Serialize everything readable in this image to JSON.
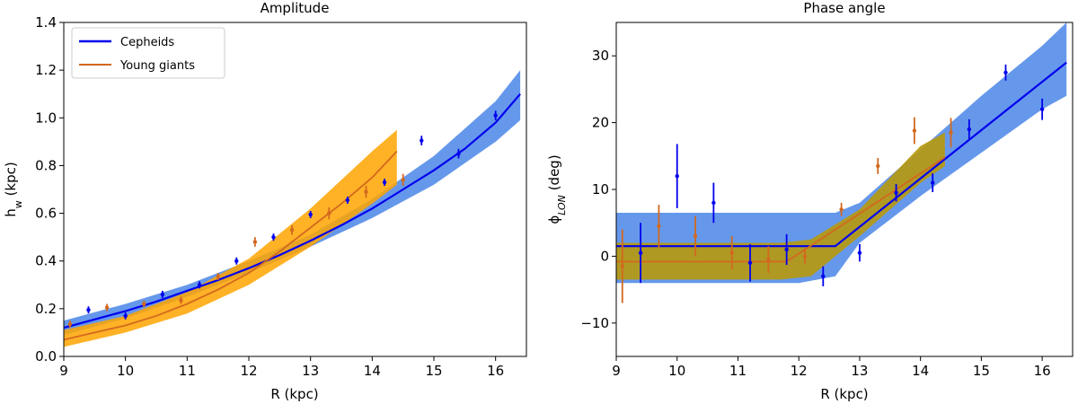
{
  "chart_data": [
    {
      "type": "line",
      "title": "Amplitude",
      "xlabel": "R (kpc)",
      "ylabel": "h_w (kpc)",
      "xlim": [
        9,
        16.5
      ],
      "ylim": [
        0,
        1.4
      ],
      "xticks": [
        "9",
        "10",
        "11",
        "12",
        "13",
        "14",
        "15",
        "16"
      ],
      "yticks": [
        "0.0",
        "0.2",
        "0.4",
        "0.6",
        "0.8",
        "1.0",
        "1.2",
        "1.4"
      ],
      "legend": {
        "placement": "top-left",
        "entries": [
          "Cepheids",
          "Young giants"
        ]
      },
      "series": [
        {
          "name": "Cepheids",
          "color": "#0000ee",
          "band_color": "#4a86e8",
          "line": {
            "x": [
              9.0,
              9.5,
              10.0,
              10.5,
              11.0,
              11.5,
              12.0,
              12.5,
              13.0,
              13.5,
              14.0,
              14.5,
              15.0,
              15.5,
              16.0,
              16.4
            ],
            "y": [
              0.12,
              0.155,
              0.19,
              0.23,
              0.275,
              0.32,
              0.37,
              0.425,
              0.485,
              0.55,
              0.62,
              0.7,
              0.78,
              0.87,
              0.98,
              1.1
            ]
          },
          "band": {
            "x": [
              9.0,
              10.0,
              11.0,
              12.0,
              13.0,
              14.0,
              15.0,
              16.0,
              16.4
            ],
            "lower": [
              0.09,
              0.16,
              0.25,
              0.35,
              0.46,
              0.58,
              0.72,
              0.9,
              0.99
            ],
            "upper": [
              0.15,
              0.22,
              0.3,
              0.4,
              0.51,
              0.66,
              0.84,
              1.07,
              1.2
            ]
          },
          "points": {
            "x": [
              9.4,
              10.0,
              10.6,
              11.2,
              11.8,
              12.4,
              13.0,
              13.6,
              14.2,
              14.8,
              15.4,
              16.0
            ],
            "y": [
              0.195,
              0.17,
              0.26,
              0.3,
              0.4,
              0.5,
              0.595,
              0.655,
              0.73,
              0.905,
              0.85,
              1.01
            ],
            "err": [
              0.015,
              0.015,
              0.015,
              0.015,
              0.015,
              0.015,
              0.015,
              0.015,
              0.015,
              0.02,
              0.02,
              0.02
            ]
          }
        },
        {
          "name": "Young giants",
          "color": "#d2691e",
          "band_color": "#ffa500",
          "line": {
            "x": [
              9.0,
              9.5,
              10.0,
              10.5,
              11.0,
              11.5,
              12.0,
              12.5,
              13.0,
              13.5,
              14.0,
              14.4
            ],
            "y": [
              0.07,
              0.1,
              0.13,
              0.17,
              0.22,
              0.28,
              0.35,
              0.44,
              0.54,
              0.64,
              0.75,
              0.86
            ]
          },
          "band": {
            "x": [
              9.0,
              10.0,
              11.0,
              12.0,
              13.0,
              14.0,
              14.4
            ],
            "lower": [
              0.04,
              0.1,
              0.18,
              0.3,
              0.46,
              0.64,
              0.72
            ],
            "upper": [
              0.11,
              0.17,
              0.27,
              0.41,
              0.62,
              0.86,
              0.95
            ]
          },
          "points": {
            "x": [
              9.1,
              9.7,
              10.3,
              10.9,
              11.5,
              12.1,
              12.7,
              13.3,
              13.9,
              14.5
            ],
            "y": [
              0.135,
              0.205,
              0.22,
              0.235,
              0.335,
              0.48,
              0.53,
              0.6,
              0.69,
              0.74
            ],
            "err": [
              0.015,
              0.015,
              0.015,
              0.015,
              0.015,
              0.02,
              0.02,
              0.025,
              0.025,
              0.025
            ]
          }
        }
      ]
    },
    {
      "type": "line",
      "title": "Phase angle",
      "xlabel": "R (kpc)",
      "ylabel": "φ_LON (deg)",
      "xlim": [
        9,
        16.5
      ],
      "ylim": [
        -15,
        35
      ],
      "xticks": [
        "9",
        "10",
        "11",
        "12",
        "13",
        "14",
        "15",
        "16"
      ],
      "yticks": [
        "−10",
        "0",
        "10",
        "20",
        "30"
      ],
      "series": [
        {
          "name": "Cepheids",
          "color": "#0000ee",
          "band_color": "#4a86e8",
          "line": {
            "x": [
              9.0,
              12.6,
              16.4
            ],
            "y": [
              1.5,
              1.5,
              29.0
            ]
          },
          "band": {
            "x": [
              9.0,
              12.0,
              12.6,
              13.0,
              14.0,
              15.0,
              16.0,
              16.4
            ],
            "lower": [
              -4.0,
              -4.0,
              -3.0,
              2.0,
              9.0,
              15.5,
              22.0,
              24.0
            ],
            "upper": [
              6.5,
              6.5,
              6.5,
              8.0,
              16.0,
              24.0,
              31.5,
              35.0
            ]
          },
          "points": {
            "x": [
              9.4,
              10.0,
              10.6,
              11.2,
              11.8,
              12.4,
              13.0,
              13.6,
              14.2,
              14.8,
              15.4,
              16.0
            ],
            "y": [
              0.5,
              12.0,
              8.0,
              -1.0,
              1.0,
              -3.0,
              0.5,
              9.5,
              11.0,
              19.0,
              27.5,
              22.0
            ],
            "err": [
              4.5,
              4.8,
              3.0,
              2.8,
              2.3,
              1.5,
              1.3,
              1.3,
              1.4,
              1.5,
              1.2,
              1.6
            ]
          }
        },
        {
          "name": "Young giants",
          "color": "#d2691e",
          "band_color": "#ffa500",
          "line": {
            "x": [
              9.0,
              11.8,
              14.4
            ],
            "y": [
              -0.8,
              -0.8,
              14.8
            ]
          },
          "band": {
            "x": [
              9.0,
              11.7,
              12.2,
              13.0,
              14.0,
              14.4
            ],
            "lower": [
              -3.5,
              -3.5,
              -3.0,
              3.0,
              11.0,
              13.5
            ],
            "upper": [
              2.0,
              2.0,
              2.5,
              7.0,
              16.5,
              18.5
            ]
          },
          "points": {
            "x": [
              9.1,
              9.7,
              10.3,
              10.9,
              11.5,
              12.1,
              12.7,
              13.3,
              13.9,
              14.5
            ],
            "y": [
              -1.5,
              4.5,
              3.0,
              0.5,
              -0.5,
              0.0,
              7.0,
              13.5,
              18.8,
              18.5
            ],
            "err": [
              5.5,
              3.2,
              3.0,
              2.5,
              2.0,
              1.2,
              1.0,
              1.2,
              2.0,
              2.2
            ]
          }
        }
      ]
    }
  ]
}
